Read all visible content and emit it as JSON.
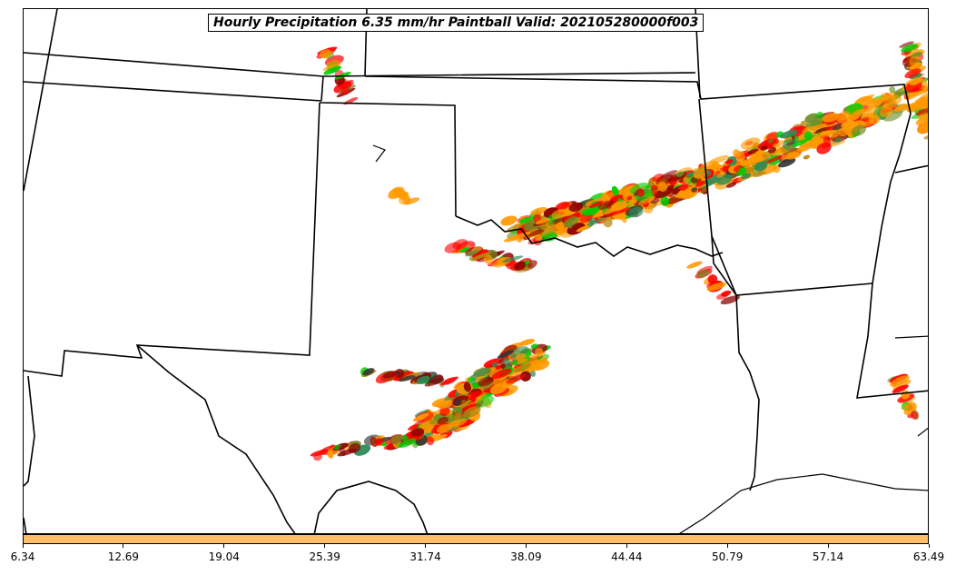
{
  "title": "Hourly Precipitation 6.35 mm/hr Paintball Valid: 202105280000f003",
  "colorbar": {
    "color": "#ffbf66",
    "ticks": [
      "6.34",
      "12.69",
      "19.04",
      "25.39",
      "31.74",
      "38.09",
      "44.44",
      "50.79",
      "57.14",
      "63.49"
    ]
  },
  "colors": {
    "boundary": "#000000",
    "member_colors": [
      "#ff9900",
      "#ff0000",
      "#00cc00",
      "#8b0000",
      "#6b8e23",
      "#2e8b57",
      "#b8860b",
      "#333333"
    ]
  },
  "map_icon": "us-south-central-map"
}
